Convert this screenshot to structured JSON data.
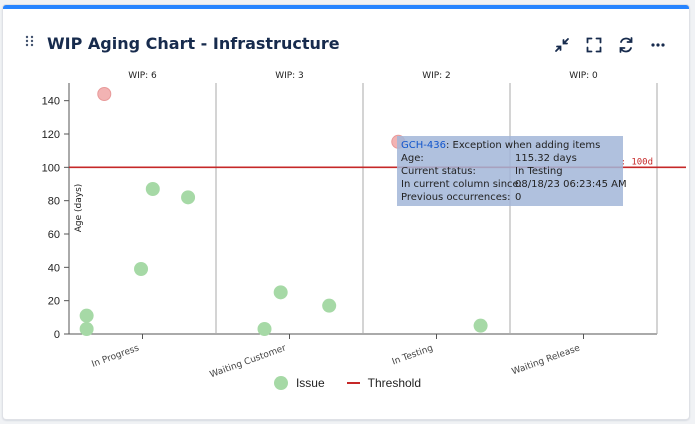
{
  "gadget": {
    "title": "WIP Aging Chart - Infrastructure",
    "icons": [
      "drag-handle-icon",
      "collapse-icon",
      "fullscreen-icon",
      "refresh-icon",
      "more-icon"
    ],
    "accent": "#2684ff"
  },
  "chart_data": {
    "type": "scatter",
    "categories": [
      "In Progress",
      "Waiting Customer",
      "In Testing",
      "Waiting Release"
    ],
    "wip_labels": [
      "WIP: 6",
      "WIP: 3",
      "WIP: 2",
      "WIP: 0"
    ],
    "ylabel": "Age (days)",
    "ylim": [
      0,
      150
    ],
    "yticks": [
      0,
      20,
      40,
      60,
      80,
      100,
      120,
      140
    ],
    "threshold": {
      "value": 100,
      "label": "Threshold",
      "tag": ": 100d",
      "color": "#c62828"
    },
    "issue_color": "#a6d9a6",
    "highlight_color": "#f2b3b3",
    "points": [
      {
        "column": 0,
        "offset": 0.12,
        "age": 3
      },
      {
        "column": 0,
        "offset": 0.12,
        "age": 11
      },
      {
        "column": 0,
        "offset": 0.49,
        "age": 39
      },
      {
        "column": 0,
        "offset": 0.57,
        "age": 87
      },
      {
        "column": 0,
        "offset": 0.81,
        "age": 82
      },
      {
        "column": 0,
        "offset": 0.24,
        "age": 144,
        "highlight": true
      },
      {
        "column": 1,
        "offset": 0.33,
        "age": 3
      },
      {
        "column": 1,
        "offset": 0.44,
        "age": 25
      },
      {
        "column": 1,
        "offset": 0.77,
        "age": 17
      },
      {
        "column": 2,
        "offset": 0.8,
        "age": 5
      },
      {
        "column": 2,
        "offset": 0.24,
        "age": 115.32,
        "highlight": true
      }
    ],
    "legend": {
      "issue": "Issue",
      "threshold": "Threshold",
      "placement": "bottom"
    }
  },
  "tooltip": {
    "key": "GCH-436",
    "summary": ": Exception when adding items",
    "rows": [
      {
        "label": "Age:",
        "value": "115.32 days"
      },
      {
        "label": "Current status:",
        "value": "In Testing"
      },
      {
        "label": "In current column since:",
        "value": "08/18/23 06:23:45 AM"
      },
      {
        "label": "Previous occurrences:",
        "value": "0"
      }
    ]
  }
}
